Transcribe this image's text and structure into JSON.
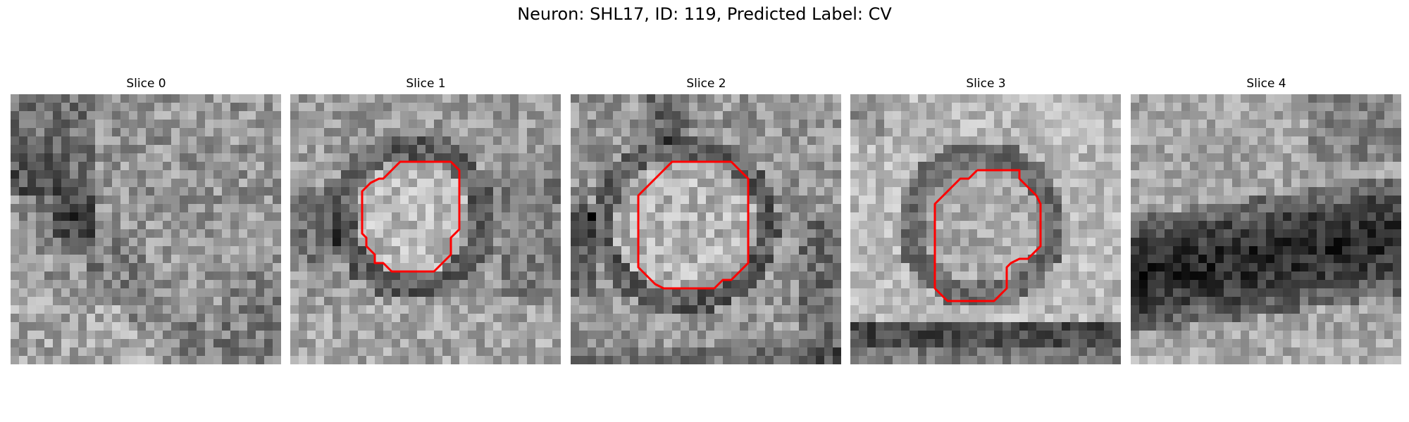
{
  "figure": {
    "title": "Neuron: SHL17, ID: 119, Predicted Label: CV"
  },
  "panels": [
    {
      "title": "Slice 0",
      "has_contour": false,
      "tone": "textured-dark-diagonal"
    },
    {
      "title": "Slice 1",
      "has_contour": true,
      "tone": "bright-cell-with-dark-ring"
    },
    {
      "title": "Slice 2",
      "has_contour": true,
      "tone": "bright-cell-with-dark-ring"
    },
    {
      "title": "Slice 3",
      "has_contour": true,
      "tone": "bright-cell-with-dark-ring-and-dark-bottom-band"
    },
    {
      "title": "Slice 4",
      "has_contour": false,
      "tone": "dark-horizontal-band"
    }
  ],
  "colors": {
    "contour": "#ff0000",
    "background": "#ffffff",
    "colormap": "gray"
  }
}
